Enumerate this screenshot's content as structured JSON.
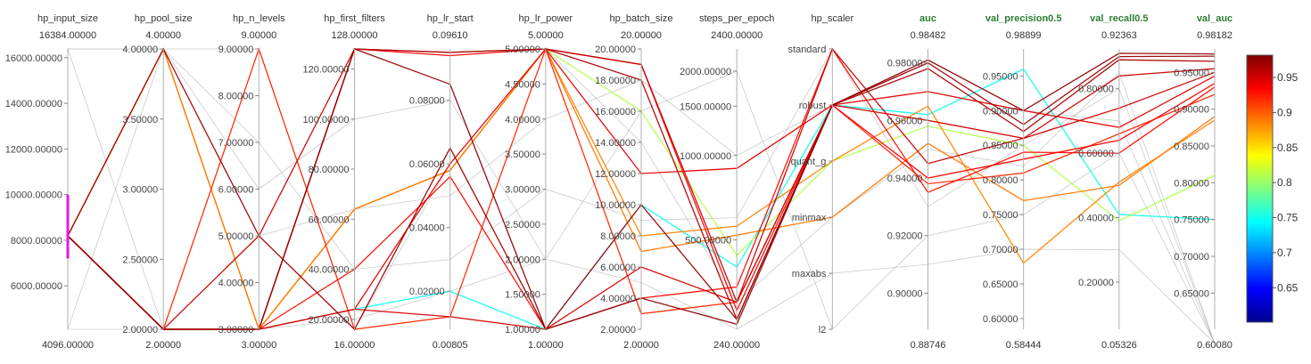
{
  "chart_data": {
    "type": "parallel_coordinates",
    "axes": [
      {
        "name": "hp_input_size",
        "metric": false,
        "scale": "linear",
        "min": 4096,
        "max": 16384,
        "top_label": "16384.00000",
        "bottom_label": "4096.00000",
        "ticks": [
          "6000.00000",
          "8000.00000",
          "10000.00000",
          "12000.00000",
          "14000.00000",
          "16000.00000"
        ],
        "tick_values": [
          6000,
          8000,
          10000,
          12000,
          14000,
          16000
        ],
        "tick_side": "left"
      },
      {
        "name": "hp_pool_size",
        "metric": false,
        "scale": "linear",
        "min": 2,
        "max": 4,
        "top_label": "4.00000",
        "bottom_label": "2.00000",
        "ticks": [
          "2.00000",
          "2.50000",
          "3.00000",
          "3.50000",
          "4.00000"
        ],
        "tick_values": [
          2,
          2.5,
          3,
          3.5,
          4
        ],
        "tick_side": "left"
      },
      {
        "name": "hp_n_levels",
        "metric": false,
        "scale": "linear",
        "min": 3,
        "max": 9,
        "top_label": "9.00000",
        "bottom_label": "3.00000",
        "ticks": [
          "3.00000",
          "4.00000",
          "5.00000",
          "6.00000",
          "7.00000",
          "8.00000",
          "9.00000"
        ],
        "tick_values": [
          3,
          4,
          5,
          6,
          7,
          8,
          9
        ],
        "tick_side": "left"
      },
      {
        "name": "hp_first_filters",
        "metric": false,
        "scale": "linear",
        "min": 16,
        "max": 128,
        "top_label": "128.00000",
        "bottom_label": "16.00000",
        "ticks": [
          "20.00000",
          "40.00000",
          "60.00000",
          "80.00000",
          "100.00000",
          "120.00000"
        ],
        "tick_values": [
          20,
          40,
          60,
          80,
          100,
          120
        ],
        "tick_side": "left"
      },
      {
        "name": "hp_lr_start",
        "metric": false,
        "scale": "linear",
        "min": 0.00805,
        "max": 0.0961,
        "top_label": "0.09610",
        "bottom_label": "0.00805",
        "ticks": [
          "0.02000",
          "0.04000",
          "0.06000",
          "0.08000"
        ],
        "tick_values": [
          0.02,
          0.04,
          0.06,
          0.08
        ],
        "tick_side": "left"
      },
      {
        "name": "hp_lr_power",
        "metric": false,
        "scale": "linear",
        "min": 1,
        "max": 5,
        "top_label": "5.00000",
        "bottom_label": "1.00000",
        "ticks": [
          "1.00000",
          "1.50000",
          "2.00000",
          "2.50000",
          "3.00000",
          "3.50000",
          "4.00000",
          "4.50000",
          "5.00000"
        ],
        "tick_values": [
          1,
          1.5,
          2,
          2.5,
          3,
          3.5,
          4,
          4.5,
          5
        ],
        "tick_side": "left"
      },
      {
        "name": "hp_batch_size",
        "metric": false,
        "scale": "linear",
        "min": 2,
        "max": 20,
        "top_label": "20.00000",
        "bottom_label": "2.00000",
        "ticks": [
          "2.00000",
          "4.00000",
          "6.00000",
          "8.00000",
          "10.00000",
          "12.00000",
          "14.00000",
          "16.00000",
          "18.00000",
          "20.00000"
        ],
        "tick_values": [
          2,
          4,
          6,
          8,
          10,
          12,
          14,
          16,
          18,
          20
        ],
        "tick_side": "left"
      },
      {
        "name": "steps_per_epoch",
        "metric": false,
        "scale": "log",
        "min": 240,
        "max": 2400,
        "top_label": "2400.00000",
        "bottom_label": "240.00000",
        "ticks": [
          "500.00000",
          "1000.00000",
          "1500.00000",
          "2000.00000"
        ],
        "tick_values": [
          500,
          1000,
          1500,
          2000
        ],
        "tick_side": "left"
      },
      {
        "name": "hp_scaler",
        "metric": false,
        "scale": "categorical",
        "categories": [
          "standard",
          "robust",
          "quant_g",
          "minmax",
          "maxabs",
          "l2"
        ],
        "top_label": "",
        "bottom_label": "",
        "tick_side": "left"
      },
      {
        "name": "auc",
        "metric": true,
        "scale": "linear",
        "min": 0.88746,
        "max": 0.98482,
        "top_label": "0.98482",
        "bottom_label": "0.88746",
        "ticks": [
          "0.90000",
          "0.92000",
          "0.94000",
          "0.96000",
          "0.98000"
        ],
        "tick_values": [
          0.9,
          0.92,
          0.94,
          0.96,
          0.98
        ],
        "tick_side": "left"
      },
      {
        "name": "val_precision0.5",
        "metric": true,
        "scale": "linear",
        "min": 0.58444,
        "max": 0.98899,
        "top_label": "0.98899",
        "bottom_label": "0.58444",
        "ticks": [
          "0.60000",
          "0.65000",
          "0.70000",
          "0.75000",
          "0.80000",
          "0.85000",
          "0.90000",
          "0.95000"
        ],
        "tick_values": [
          0.6,
          0.65,
          0.7,
          0.75,
          0.8,
          0.85,
          0.9,
          0.95
        ],
        "tick_side": "left"
      },
      {
        "name": "val_recall0.5",
        "metric": true,
        "scale": "linear",
        "min": 0.05326,
        "max": 0.92363,
        "top_label": "0.92363",
        "bottom_label": "0.05326",
        "ticks": [
          "0.20000",
          "0.40000",
          "0.60000",
          "0.80000"
        ],
        "tick_values": [
          0.2,
          0.4,
          0.6,
          0.8
        ],
        "tick_side": "left"
      },
      {
        "name": "val_auc",
        "metric": true,
        "scale": "linear",
        "min": 0.6008,
        "max": 0.98182,
        "top_label": "0.98182",
        "bottom_label": "0.60080",
        "ticks": [
          "0.65000",
          "0.70000",
          "0.75000",
          "0.80000",
          "0.85000",
          "0.90000",
          "0.95000"
        ],
        "tick_values": [
          0.65,
          0.7,
          0.75,
          0.8,
          0.85,
          0.9,
          0.95
        ],
        "tick_side": "left"
      }
    ],
    "color_metric": "val_auc",
    "colorbar": {
      "min": 0.6008,
      "max": 0.98182,
      "ticks": [
        "0.65",
        "0.7",
        "0.75",
        "0.8",
        "0.85",
        "0.9",
        "0.95"
      ],
      "tick_values": [
        0.65,
        0.7,
        0.75,
        0.8,
        0.85,
        0.9,
        0.95
      ],
      "colormap": "jet"
    },
    "filter": {
      "axis": "hp_input_size",
      "range": [
        7200,
        10000
      ],
      "color": "#e21ce2"
    },
    "lines": [
      {
        "hp_input_size": 8192,
        "hp_pool_size": 4,
        "hp_n_levels": 3,
        "hp_first_filters": 64,
        "hp_lr_start": 0.058,
        "hp_lr_power": 5,
        "hp_batch_size": 8,
        "steps_per_epoch": 560,
        "hp_scaler": "quant_g",
        "auc": 0.965,
        "val_precision0.5": 0.68,
        "val_recall0.5": 0.51,
        "val_auc": 0.885
      },
      {
        "hp_input_size": 8192,
        "hp_pool_size": 4,
        "hp_n_levels": 3,
        "hp_first_filters": 64,
        "hp_lr_start": 0.058,
        "hp_lr_power": 5,
        "hp_batch_size": 7,
        "steps_per_epoch": 520,
        "hp_scaler": "minmax",
        "auc": 0.952,
        "val_precision0.5": 0.77,
        "val_recall0.5": 0.5,
        "val_auc": 0.89
      },
      {
        "hp_input_size": 8192,
        "hp_pool_size": 2,
        "hp_n_levels": 3,
        "hp_first_filters": 24,
        "hp_lr_start": 0.02,
        "hp_lr_power": 1,
        "hp_batch_size": 10,
        "steps_per_epoch": 400,
        "hp_scaler": "robust",
        "auc": 0.962,
        "val_precision0.5": 0.96,
        "val_recall0.5": 0.41,
        "val_auc": 0.75
      },
      {
        "hp_input_size": 8192,
        "hp_pool_size": 2,
        "hp_n_levels": 3,
        "hp_first_filters": 64,
        "hp_lr_start": 0.058,
        "hp_lr_power": 5,
        "hp_batch_size": 16,
        "steps_per_epoch": 440,
        "hp_scaler": "quant_g",
        "auc": 0.958,
        "val_precision0.5": 0.85,
        "val_recall0.5": 0.39,
        "val_auc": 0.81
      },
      {
        "hp_input_size": 8192,
        "hp_pool_size": 2,
        "hp_n_levels": 3,
        "hp_first_filters": 24,
        "hp_lr_start": 0.012,
        "hp_lr_power": 1,
        "hp_batch_size": 6,
        "steps_per_epoch": 300,
        "hp_scaler": "robust",
        "auc": 0.96,
        "val_precision0.5": 0.86,
        "val_recall0.5": 0.74,
        "val_auc": 0.95
      },
      {
        "hp_input_size": 8192,
        "hp_pool_size": 2,
        "hp_n_levels": 3,
        "hp_first_filters": 128,
        "hp_lr_start": 0.094,
        "hp_lr_power": 5,
        "hp_batch_size": 19,
        "steps_per_epoch": 280,
        "hp_scaler": "robust",
        "auc": 0.94,
        "val_precision0.5": 0.83,
        "val_recall0.5": 0.64,
        "val_auc": 0.935
      },
      {
        "hp_input_size": 8192,
        "hp_pool_size": 2,
        "hp_n_levels": 3,
        "hp_first_filters": 40,
        "hp_lr_start": 0.056,
        "hp_lr_power": 1,
        "hp_batch_size": 4,
        "steps_per_epoch": 340,
        "hp_scaler": "standard",
        "auc": 0.935,
        "val_precision0.5": 0.84,
        "val_recall0.5": 0.6,
        "val_auc": 0.93
      },
      {
        "hp_input_size": 8192,
        "hp_pool_size": 2,
        "hp_n_levels": 9,
        "hp_first_filters": 16,
        "hp_lr_start": 0.012,
        "hp_lr_power": 5,
        "hp_batch_size": 3,
        "steps_per_epoch": 300,
        "hp_scaler": "robust",
        "auc": 0.938,
        "val_precision0.5": 0.81,
        "val_recall0.5": 0.66,
        "val_auc": 0.92
      },
      {
        "hp_input_size": 8192,
        "hp_pool_size": 2,
        "hp_n_levels": 3,
        "hp_first_filters": 24,
        "hp_lr_start": 0.06,
        "hp_lr_power": 5,
        "hp_batch_size": 12,
        "steps_per_epoch": 900,
        "hp_scaler": "robust",
        "auc": 0.97,
        "val_precision0.5": 0.9,
        "val_recall0.5": 0.68,
        "val_auc": 0.945
      },
      {
        "hp_input_size": 8192,
        "hp_pool_size": 2,
        "hp_n_levels": 5,
        "hp_first_filters": 128,
        "hp_lr_start": 0.095,
        "hp_lr_power": 5,
        "hp_batch_size": 19,
        "steps_per_epoch": 300,
        "hp_scaler": "standard",
        "auc": 0.945,
        "val_precision0.5": 0.86,
        "val_recall0.5": 0.84,
        "val_auc": 0.955
      },
      {
        "hp_input_size": 8192,
        "hp_pool_size": 2,
        "hp_n_levels": 3,
        "hp_first_filters": 128,
        "hp_lr_start": 0.085,
        "hp_lr_power": 1,
        "hp_batch_size": 4,
        "steps_per_epoch": 250,
        "hp_scaler": "robust",
        "auc": 0.981,
        "val_precision0.5": 0.9,
        "val_recall0.5": 0.91,
        "val_auc": 0.975
      },
      {
        "hp_input_size": 8192,
        "hp_pool_size": 4,
        "hp_n_levels": 5,
        "hp_first_filters": 16,
        "hp_lr_start": 0.065,
        "hp_lr_power": 1,
        "hp_batch_size": 10,
        "steps_per_epoch": 260,
        "hp_scaler": "robust",
        "auc": 0.98,
        "val_precision0.5": 0.88,
        "val_recall0.5": 0.9,
        "val_auc": 0.972
      },
      {
        "hp_input_size": 8192,
        "hp_pool_size": 2,
        "hp_n_levels": 3,
        "hp_first_filters": 128,
        "hp_lr_start": 0.095,
        "hp_lr_power": 5,
        "hp_batch_size": 18,
        "steps_per_epoch": 260,
        "hp_scaler": "robust",
        "auc": 0.978,
        "val_precision0.5": 0.87,
        "val_recall0.5": 0.89,
        "val_auc": 0.965
      },
      {
        "hp_input_size": 16384,
        "hp_pool_size": 4,
        "hp_n_levels": 9,
        "hp_first_filters": 16,
        "hp_lr_start": 0.06,
        "hp_lr_power": 5,
        "hp_batch_size": 14,
        "steps_per_epoch": 300,
        "hp_scaler": "minmax",
        "auc": 0.95,
        "val_precision0.5": 0.82,
        "val_recall0.5": 0.85,
        "val_auc": 0.55
      },
      {
        "hp_input_size": 4096,
        "hp_pool_size": 4,
        "hp_n_levels": 7,
        "hp_first_filters": 40,
        "hp_lr_start": 0.03,
        "hp_lr_power": 3,
        "hp_batch_size": 9,
        "steps_per_epoch": 600,
        "hp_scaler": "standard",
        "auc": 0.93,
        "val_precision0.5": 0.85,
        "val_recall0.5": 0.8,
        "val_auc": 0.55
      },
      {
        "hp_input_size": 16384,
        "hp_pool_size": 2,
        "hp_n_levels": 5,
        "hp_first_filters": 64,
        "hp_lr_start": 0.05,
        "hp_lr_power": 4,
        "hp_batch_size": 18,
        "steps_per_epoch": 1000,
        "hp_scaler": "robust",
        "auc": 0.97,
        "val_precision0.5": 0.9,
        "val_recall0.5": 0.7,
        "val_auc": 0.55
      },
      {
        "hp_input_size": 4096,
        "hp_pool_size": 2,
        "hp_n_levels": 3,
        "hp_first_filters": 20,
        "hp_lr_start": 0.02,
        "hp_lr_power": 2,
        "hp_batch_size": 5,
        "steps_per_epoch": 240,
        "hp_scaler": "maxabs",
        "auc": 0.91,
        "val_precision0.5": 0.7,
        "val_recall0.5": 0.3,
        "val_auc": 0.55
      },
      {
        "hp_input_size": 16384,
        "hp_pool_size": 4,
        "hp_n_levels": 6,
        "hp_first_filters": 100,
        "hp_lr_start": 0.08,
        "hp_lr_power": 2,
        "hp_batch_size": 16,
        "steps_per_epoch": 2000,
        "hp_scaler": "l2",
        "auc": 0.92,
        "val_precision0.5": 0.75,
        "val_recall0.5": 0.6,
        "val_auc": 0.55
      }
    ]
  }
}
